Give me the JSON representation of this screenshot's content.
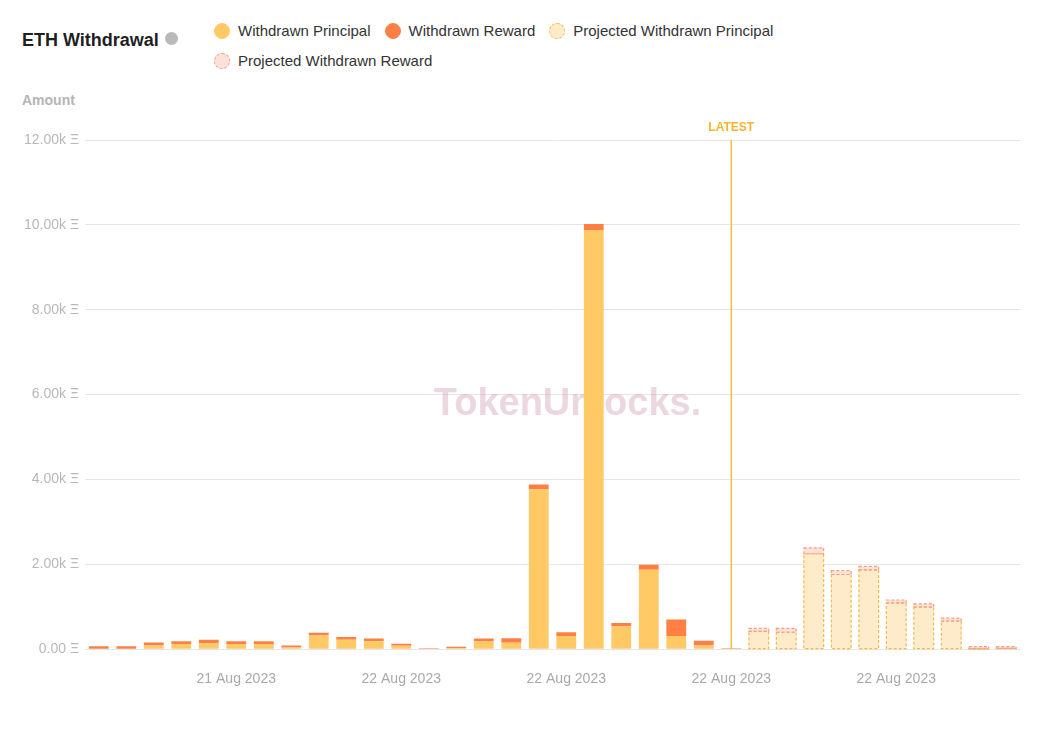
{
  "chart_data": {
    "type": "bar",
    "title": "ETH Withdrawal",
    "y_label": "Amount",
    "watermark": "TokenUnlocks.",
    "stacked": true,
    "grid": true,
    "legend": "top",
    "categories": [
      null,
      null,
      null,
      null,
      null,
      "21 Aug 2023",
      null,
      null,
      null,
      null,
      null,
      "22 Aug 2023",
      null,
      null,
      null,
      null,
      null,
      "22 Aug 2023",
      null,
      null,
      null,
      null,
      null,
      "22 Aug 2023",
      null,
      null,
      null,
      null,
      null,
      "22 Aug 2023",
      null,
      null,
      null,
      null
    ],
    "series": [
      {
        "name": "Withdrawn Principal",
        "color": "#ffc966",
        "line_style": "solid",
        "values": [
          10,
          10,
          90,
          120,
          140,
          120,
          120,
          40,
          320,
          220,
          190,
          80,
          0,
          30,
          180,
          150,
          3770,
          310,
          9880,
          540,
          1870,
          310,
          90,
          0,
          null,
          null,
          null,
          null,
          null,
          null,
          null,
          null,
          null,
          null
        ]
      },
      {
        "name": "Withdrawn Reward",
        "color": "#ff7f45",
        "line_style": "solid",
        "values": [
          60,
          60,
          70,
          70,
          80,
          70,
          70,
          50,
          70,
          70,
          60,
          50,
          20,
          30,
          70,
          110,
          110,
          90,
          140,
          80,
          120,
          390,
          110,
          20,
          null,
          null,
          null,
          null,
          null,
          null,
          null,
          null,
          null,
          null
        ]
      },
      {
        "name": "Projected Withdrawn Principal",
        "color": "#fdebc9",
        "line_style": "dashed",
        "values": [
          null,
          null,
          null,
          null,
          null,
          null,
          null,
          null,
          null,
          null,
          null,
          null,
          null,
          null,
          null,
          null,
          null,
          null,
          null,
          null,
          null,
          null,
          null,
          null,
          420,
          400,
          2250,
          1760,
          1870,
          1090,
          990,
          660,
          10,
          20
        ]
      },
      {
        "name": "Projected Withdrawn Reward",
        "color": "#fde0d8",
        "line_style": "dashed",
        "values": [
          null,
          null,
          null,
          null,
          null,
          null,
          null,
          null,
          null,
          null,
          null,
          null,
          null,
          null,
          null,
          null,
          null,
          null,
          null,
          null,
          null,
          null,
          null,
          null,
          70,
          90,
          140,
          90,
          80,
          70,
          80,
          70,
          50,
          40
        ]
      }
    ],
    "ylim": [
      0,
      12000
    ],
    "yticks": [
      {
        "value": 0,
        "label": "0.00 Ξ"
      },
      {
        "value": 2000,
        "label": "2.00k Ξ"
      },
      {
        "value": 4000,
        "label": "4.00k Ξ"
      },
      {
        "value": 6000,
        "label": "6.00k Ξ"
      },
      {
        "value": 8000,
        "label": "8.00k Ξ"
      },
      {
        "value": 10000,
        "label": "10.00k Ξ"
      },
      {
        "value": 12000,
        "label": "12.00k Ξ"
      }
    ],
    "annotations": [
      {
        "text": "LATEST",
        "category_index": 23
      }
    ]
  }
}
